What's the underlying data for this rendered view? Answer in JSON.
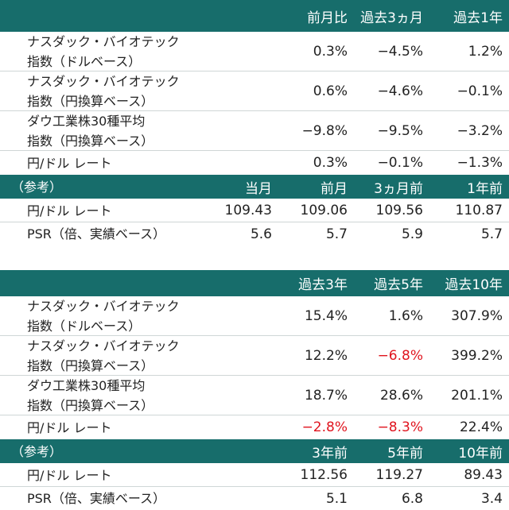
{
  "tables": [
    {
      "header": [
        "前月比",
        "過去3ヵ月",
        "過去1年"
      ],
      "rows": [
        {
          "label": [
            "ナスダック・バイオテック",
            "指数（ドルベース）"
          ],
          "values": [
            "0.3%",
            "−4.5%",
            "1.2%"
          ]
        },
        {
          "label": [
            "ナスダック・バイオテック",
            "指数（円換算ベース）"
          ],
          "values": [
            "0.6%",
            "−4.6%",
            "−0.1%"
          ]
        },
        {
          "label": [
            "ダウ工業株30種平均",
            "指数（円換算ベース）"
          ],
          "values": [
            "−9.8%",
            "−9.5%",
            "−3.2%"
          ]
        },
        {
          "label": [
            "円/ドル レート"
          ],
          "values": [
            "0.3%",
            "−0.1%",
            "−1.3%"
          ]
        }
      ],
      "reference": {
        "title": "（参考）",
        "header": [
          "当月",
          "前月",
          "3ヵ月前",
          "1年前"
        ],
        "rows": [
          {
            "label": "円/ドル レート",
            "values": [
              "109.43",
              "109.06",
              "109.56",
              "110.87"
            ]
          },
          {
            "label": "PSR（倍、実績ベース）",
            "values": [
              "5.6",
              "5.7",
              "5.9",
              "5.7"
            ]
          }
        ]
      }
    },
    {
      "header": [
        "過去3年",
        "過去5年",
        "過去10年"
      ],
      "rows": [
        {
          "label": [
            "ナスダック・バイオテック",
            "指数（ドルベース）"
          ],
          "values": [
            "15.4%",
            "1.6%",
            "307.9%"
          ]
        },
        {
          "label": [
            "ナスダック・バイオテック",
            "指数（円換算ベース）"
          ],
          "values": [
            "12.2%",
            "−6.8%",
            "399.2%"
          ],
          "colors": [
            "#222222",
            "#e0141e",
            "#222222"
          ]
        },
        {
          "label": [
            "ダウ工業株30種平均",
            "指数（円換算ベース）"
          ],
          "values": [
            "18.7%",
            "28.6%",
            "201.1%"
          ]
        },
        {
          "label": [
            "円/ドル レート"
          ],
          "values": [
            "−2.8%",
            "−8.3%",
            "22.4%"
          ],
          "colors": [
            "#e0141e",
            "#e0141e",
            "#222222"
          ]
        }
      ],
      "reference": {
        "title": "（参考）",
        "header": [
          "3年前",
          "5年前",
          "10年前"
        ],
        "rows": [
          {
            "label": "円/ドル レート",
            "values": [
              "112.56",
              "119.27",
              "89.43"
            ]
          },
          {
            "label": "PSR（倍、実績ベース）",
            "values": [
              "5.1",
              "6.8",
              "3.4"
            ]
          }
        ]
      }
    }
  ]
}
